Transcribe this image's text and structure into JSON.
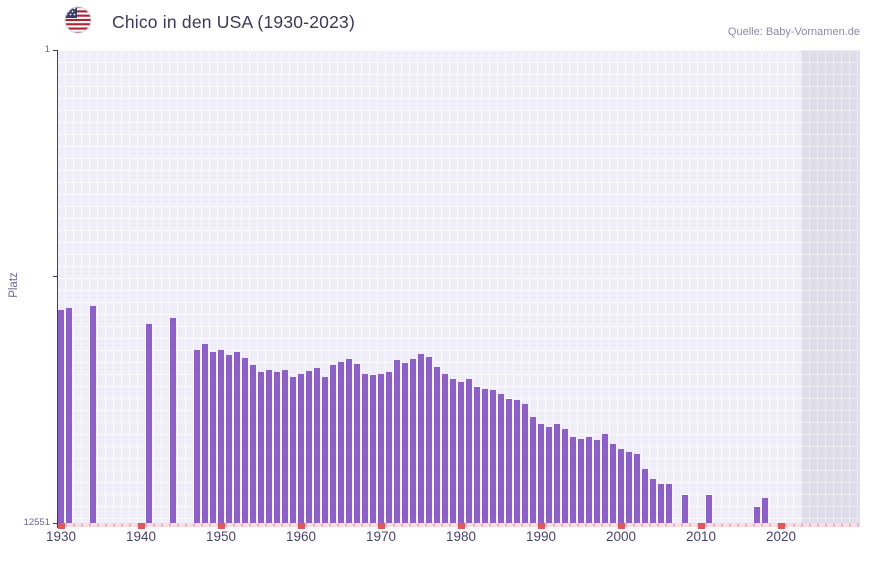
{
  "header": {
    "title": "Chico in den USA (1930-2023)",
    "source": "Quelle: Baby-Vornamen.de",
    "flag_icon": "us-flag-icon"
  },
  "chart_data": {
    "type": "bar",
    "title": "Chico in den USA (1930-2023)",
    "subtitle": "",
    "xlabel": "",
    "ylabel": "Platz",
    "legend": "none",
    "grid": "on",
    "y_axis": {
      "top_label": "1",
      "bottom_label": "12551",
      "min": 1,
      "max": 12551,
      "inverted": true
    },
    "y_ticks": [
      {
        "rank": 1,
        "label": "1"
      },
      {
        "rank": 6000,
        "label": ""
      },
      {
        "rank": 12551,
        "label": "12551"
      }
    ],
    "x_ticks": [
      1930,
      1940,
      1950,
      1960,
      1970,
      1980,
      1990,
      2000,
      2010,
      2020
    ],
    "x_range": [
      1929.5,
      2029.5
    ],
    "x_shaded_from": 2022.5,
    "colors": {
      "bar": "#8c60c4",
      "plot_background": "#efedf7",
      "decade_tick": "#e0585e",
      "baseline_pink": "#f3c8ce",
      "axis_line": "#413c5c",
      "title_text": "#3d3756",
      "tick_text": "#4a4468"
    },
    "points": [
      {
        "year": 1930,
        "rank": 6900
      },
      {
        "year": 1931,
        "rank": 6850
      },
      {
        "year": 1934,
        "rank": 6800
      },
      {
        "year": 1941,
        "rank": 7270
      },
      {
        "year": 1944,
        "rank": 7110
      },
      {
        "year": 1947,
        "rank": 7960
      },
      {
        "year": 1948,
        "rank": 7790
      },
      {
        "year": 1949,
        "rank": 8010
      },
      {
        "year": 1950,
        "rank": 7960
      },
      {
        "year": 1951,
        "rank": 8090
      },
      {
        "year": 1952,
        "rank": 8010
      },
      {
        "year": 1953,
        "rank": 8170
      },
      {
        "year": 1954,
        "rank": 8360
      },
      {
        "year": 1955,
        "rank": 8540
      },
      {
        "year": 1956,
        "rank": 8490
      },
      {
        "year": 1957,
        "rank": 8540
      },
      {
        "year": 1958,
        "rank": 8490
      },
      {
        "year": 1959,
        "rank": 8670
      },
      {
        "year": 1960,
        "rank": 8600
      },
      {
        "year": 1961,
        "rank": 8520
      },
      {
        "year": 1962,
        "rank": 8440
      },
      {
        "year": 1963,
        "rank": 8670
      },
      {
        "year": 1964,
        "rank": 8360
      },
      {
        "year": 1965,
        "rank": 8280
      },
      {
        "year": 1966,
        "rank": 8200
      },
      {
        "year": 1967,
        "rank": 8330
      },
      {
        "year": 1968,
        "rank": 8600
      },
      {
        "year": 1969,
        "rank": 8620
      },
      {
        "year": 1970,
        "rank": 8600
      },
      {
        "year": 1971,
        "rank": 8540
      },
      {
        "year": 1972,
        "rank": 8230
      },
      {
        "year": 1973,
        "rank": 8300
      },
      {
        "year": 1974,
        "rank": 8200
      },
      {
        "year": 1975,
        "rank": 8070
      },
      {
        "year": 1976,
        "rank": 8150
      },
      {
        "year": 1977,
        "rank": 8410
      },
      {
        "year": 1978,
        "rank": 8600
      },
      {
        "year": 1979,
        "rank": 8730
      },
      {
        "year": 1980,
        "rank": 8810
      },
      {
        "year": 1981,
        "rank": 8730
      },
      {
        "year": 1982,
        "rank": 8940
      },
      {
        "year": 1983,
        "rank": 8990
      },
      {
        "year": 1984,
        "rank": 9020
      },
      {
        "year": 1985,
        "rank": 9130
      },
      {
        "year": 1986,
        "rank": 9260
      },
      {
        "year": 1987,
        "rank": 9290
      },
      {
        "year": 1988,
        "rank": 9390
      },
      {
        "year": 1989,
        "rank": 9740
      },
      {
        "year": 1990,
        "rank": 9920
      },
      {
        "year": 1991,
        "rank": 10000
      },
      {
        "year": 1992,
        "rank": 9920
      },
      {
        "year": 1993,
        "rank": 10060
      },
      {
        "year": 1994,
        "rank": 10270
      },
      {
        "year": 1995,
        "rank": 10320
      },
      {
        "year": 1996,
        "rank": 10270
      },
      {
        "year": 1997,
        "rank": 10350
      },
      {
        "year": 1998,
        "rank": 10190
      },
      {
        "year": 1999,
        "rank": 10450
      },
      {
        "year": 2000,
        "rank": 10590
      },
      {
        "year": 2001,
        "rank": 10670
      },
      {
        "year": 2002,
        "rank": 10720
      },
      {
        "year": 2003,
        "rank": 11120
      },
      {
        "year": 2004,
        "rank": 11380
      },
      {
        "year": 2005,
        "rank": 11510
      },
      {
        "year": 2006,
        "rank": 11510
      },
      {
        "year": 2008,
        "rank": 11800
      },
      {
        "year": 2011,
        "rank": 11800
      },
      {
        "year": 2017,
        "rank": 12120
      },
      {
        "year": 2018,
        "rank": 11880
      }
    ]
  }
}
